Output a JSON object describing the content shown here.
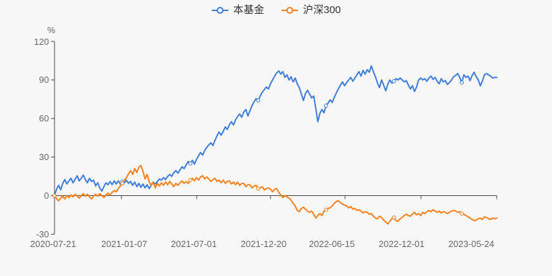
{
  "page": {
    "background": "#f7f7f8"
  },
  "legend": {
    "items": [
      {
        "label": "本基金",
        "color": "#3f7dd8"
      },
      {
        "label": "沪深300",
        "color": "#f6801a"
      }
    ]
  },
  "chart_data": {
    "type": "line",
    "title": "",
    "unit_label": "%",
    "ylabel": "%",
    "xlabel": "",
    "grid": false,
    "legend_position": "top-center",
    "ylim": [
      -30,
      120
    ],
    "y_ticks": [
      120,
      90,
      60,
      30,
      0,
      -30
    ],
    "x_ticks": [
      "2020-07-21",
      "2021-01-07",
      "2021-07-01",
      "2021-12-20",
      "2022-06-15",
      "2022-12-01",
      "2023-05-24"
    ],
    "series": [
      {
        "name": "本基金",
        "color": "#3f7dd8",
        "values": [
          0,
          5,
          8,
          4.5,
          9.5,
          12.5,
          9,
          11.5,
          13.5,
          10,
          12.5,
          15.5,
          11.5,
          13.5,
          16,
          12.5,
          10,
          13.5,
          11,
          12,
          7.5,
          10,
          6,
          3.5,
          7,
          10,
          8.5,
          11,
          8.5,
          11.5,
          9,
          11.5,
          9,
          11,
          10,
          12,
          9.5,
          11,
          8,
          10.5,
          7,
          9.5,
          6.5,
          9,
          6,
          8.5,
          5.5,
          8,
          10.5,
          9,
          11,
          13,
          12,
          14,
          12.5,
          15,
          16.5,
          15,
          18,
          19.5,
          17.5,
          20,
          22.5,
          21,
          24,
          26.5,
          25,
          27.5,
          24.5,
          28,
          31,
          33.5,
          31.5,
          35,
          37.5,
          39.5,
          41,
          39,
          43,
          46.5,
          49.5,
          47,
          50,
          53.5,
          51.5,
          55,
          57.5,
          55,
          59,
          61.5,
          63.5,
          61,
          65,
          67,
          62,
          66,
          70,
          73,
          75.5,
          74,
          77.5,
          80.5,
          82.5,
          84.5,
          83,
          87,
          90,
          93,
          95.5,
          97,
          94.5,
          96.5,
          92,
          94,
          90,
          92.5,
          88.5,
          91.5,
          87,
          84,
          79,
          74,
          79.5,
          82,
          79,
          76,
          77.5,
          68,
          57.5,
          64,
          67,
          64.5,
          70,
          72,
          74.5,
          72.5,
          76.5,
          80,
          83,
          86,
          88.5,
          85.5,
          88,
          90,
          92,
          89,
          91.5,
          94,
          96.5,
          93,
          97.5,
          94.5,
          98,
          96,
          101,
          96.5,
          92.5,
          87.5,
          84,
          90,
          86,
          81.5,
          86.5,
          90,
          87.5,
          89,
          91,
          90,
          91.5,
          90,
          88.5,
          89.5,
          86,
          83,
          85.5,
          81,
          84.5,
          90,
          91.5,
          90,
          91,
          89,
          91.5,
          93,
          90.5,
          92,
          89,
          87,
          91,
          88.5,
          89.5,
          86.5,
          88,
          90,
          92.5,
          93.5,
          95,
          92,
          88,
          94,
          92,
          93,
          89.5,
          93.5,
          96,
          92.5,
          90,
          85.5,
          89,
          94,
          95,
          94,
          93,
          91.5,
          92,
          92
        ]
      },
      {
        "name": "沪深300",
        "color": "#f6801a",
        "values": [
          0,
          -2.5,
          -4,
          -2,
          -0.5,
          -2.5,
          0,
          -1.5,
          0.5,
          -1,
          1,
          -0.5,
          -2,
          0,
          1.5,
          -0.5,
          1,
          -1,
          -2.5,
          -0.5,
          1,
          -0.5,
          1.5,
          0,
          -1.5,
          0.5,
          2,
          0.5,
          2.5,
          4,
          3,
          5.5,
          7.5,
          9.5,
          12,
          14,
          17,
          19.5,
          16.5,
          21,
          18,
          22,
          23.5,
          19,
          13,
          16.5,
          11,
          8,
          10.5,
          6,
          9.5,
          7.5,
          10,
          8,
          10.5,
          8.5,
          11,
          9,
          7,
          9.5,
          8,
          10,
          11.5,
          9.5,
          11,
          9.5,
          12,
          13.5,
          11.5,
          14,
          12,
          14.5,
          15.5,
          13,
          14.5,
          13,
          11,
          12.5,
          13.5,
          11,
          12,
          10,
          12,
          9.5,
          11,
          11.5,
          9,
          10.5,
          8.5,
          10.5,
          8,
          9.5,
          9.5,
          7,
          8.5,
          8.5,
          6,
          7.5,
          8,
          5.5,
          6,
          7,
          4.5,
          5.5,
          6,
          5,
          3,
          5,
          5.5,
          2.5,
          0.5,
          -1.5,
          0,
          -1,
          -2,
          -3.5,
          -6,
          -8,
          -11.5,
          -12.5,
          -10,
          -9,
          -10.5,
          -12,
          -13,
          -12,
          -14.5,
          -17.5,
          -15.5,
          -14,
          -15.5,
          -12,
          -11,
          -10,
          -9.5,
          -8,
          -6,
          -4.5,
          -4,
          -5.5,
          -6.5,
          -7.5,
          -8,
          -9.5,
          -8.5,
          -10.5,
          -10,
          -11.5,
          -11,
          -12,
          -13.5,
          -12.5,
          -13,
          -14.5,
          -14,
          -16,
          -17.5,
          -18,
          -16,
          -17,
          -19,
          -20.5,
          -22,
          -20,
          -18,
          -17,
          -19.5,
          -20,
          -18,
          -17,
          -15.5,
          -14.5,
          -15.5,
          -16,
          -14.5,
          -13,
          -15,
          -14,
          -15.5,
          -13,
          -14,
          -12.5,
          -11.5,
          -12.5,
          -11,
          -12,
          -13,
          -12,
          -13.5,
          -12.5,
          -13,
          -14,
          -13,
          -12,
          -11.5,
          -12,
          -13,
          -12.5,
          -14,
          -14.5,
          -15.5,
          -16.5,
          -17.5,
          -18.5,
          -19.5,
          -19,
          -18,
          -17.5,
          -18.5,
          -16.5,
          -17,
          -18,
          -18.5,
          -17.5,
          -18,
          -17.5
        ]
      }
    ]
  }
}
